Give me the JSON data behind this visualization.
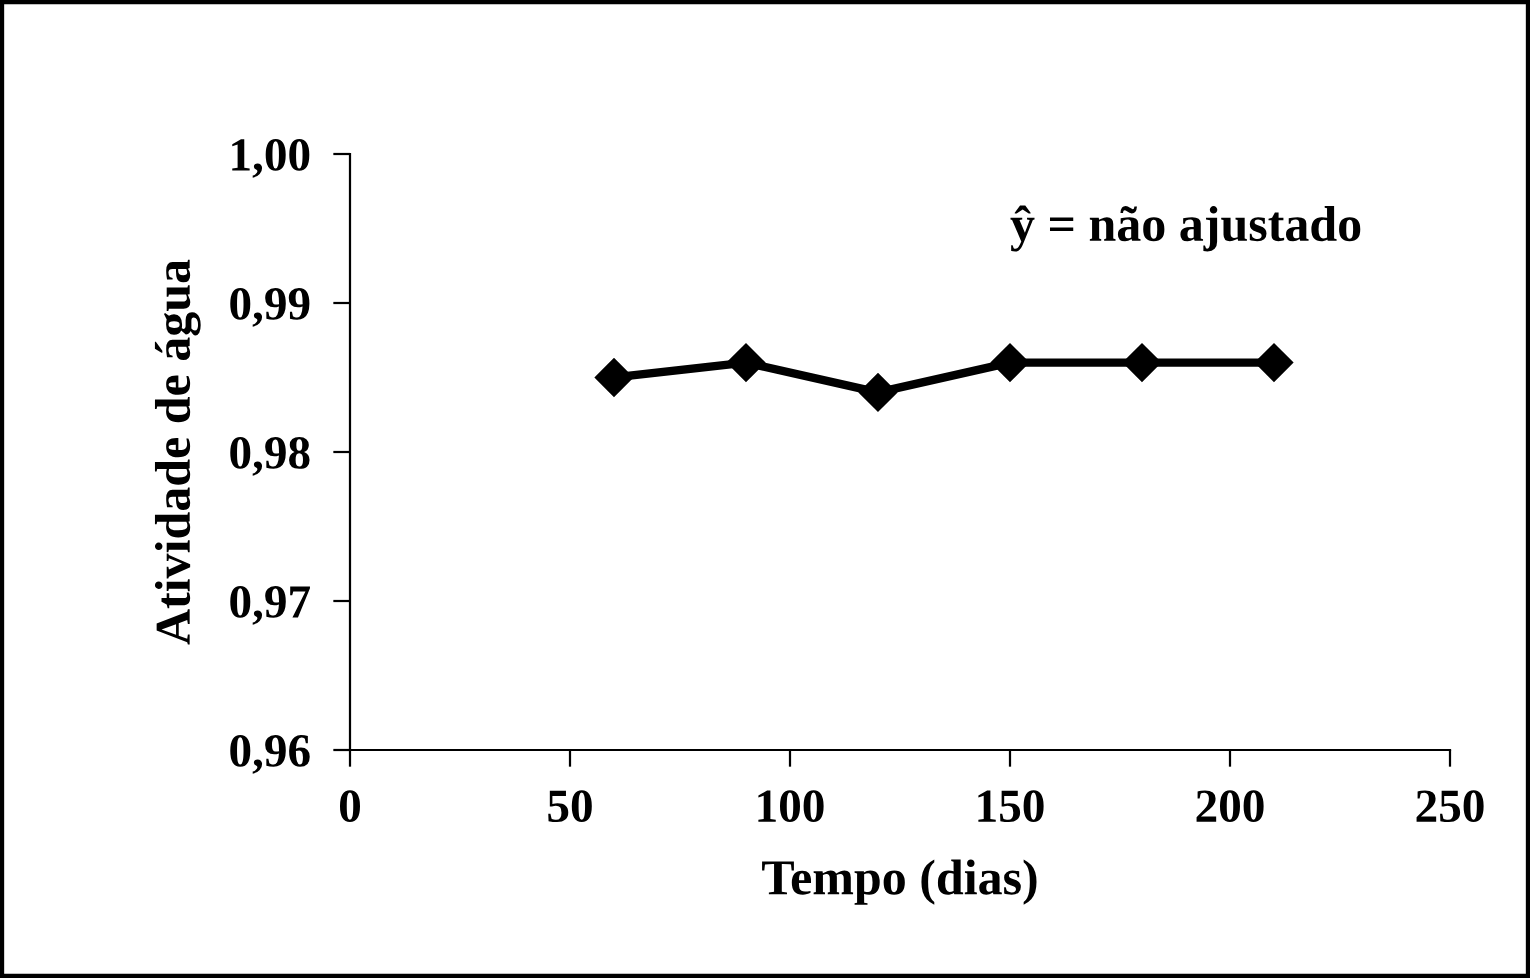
{
  "chart_data": {
    "type": "line",
    "xlabel": "Tempo (dias)",
    "ylabel": "Atividade de água",
    "x": [
      60,
      90,
      120,
      150,
      180,
      210
    ],
    "series": [
      {
        "color": "#000000",
        "values": [
          0.985,
          0.986,
          0.984,
          0.986,
          0.986,
          0.986
        ]
      }
    ],
    "xlim": [
      0,
      250
    ],
    "xticks": [
      0,
      50,
      100,
      150,
      200,
      250
    ],
    "ylim": [
      0.96,
      1.0
    ],
    "yticks": [
      {
        "value": 0.96,
        "label": "0,96"
      },
      {
        "value": 0.97,
        "label": "0,97"
      },
      {
        "value": 0.98,
        "label": "0,98"
      },
      {
        "value": 0.99,
        "label": "0,99"
      },
      {
        "value": 1.0,
        "label": "1,00"
      }
    ],
    "marker": "diamond",
    "line_style": "solid",
    "grid": false,
    "legend": false,
    "annotations": [
      "ŷ = não ajustado"
    ]
  }
}
